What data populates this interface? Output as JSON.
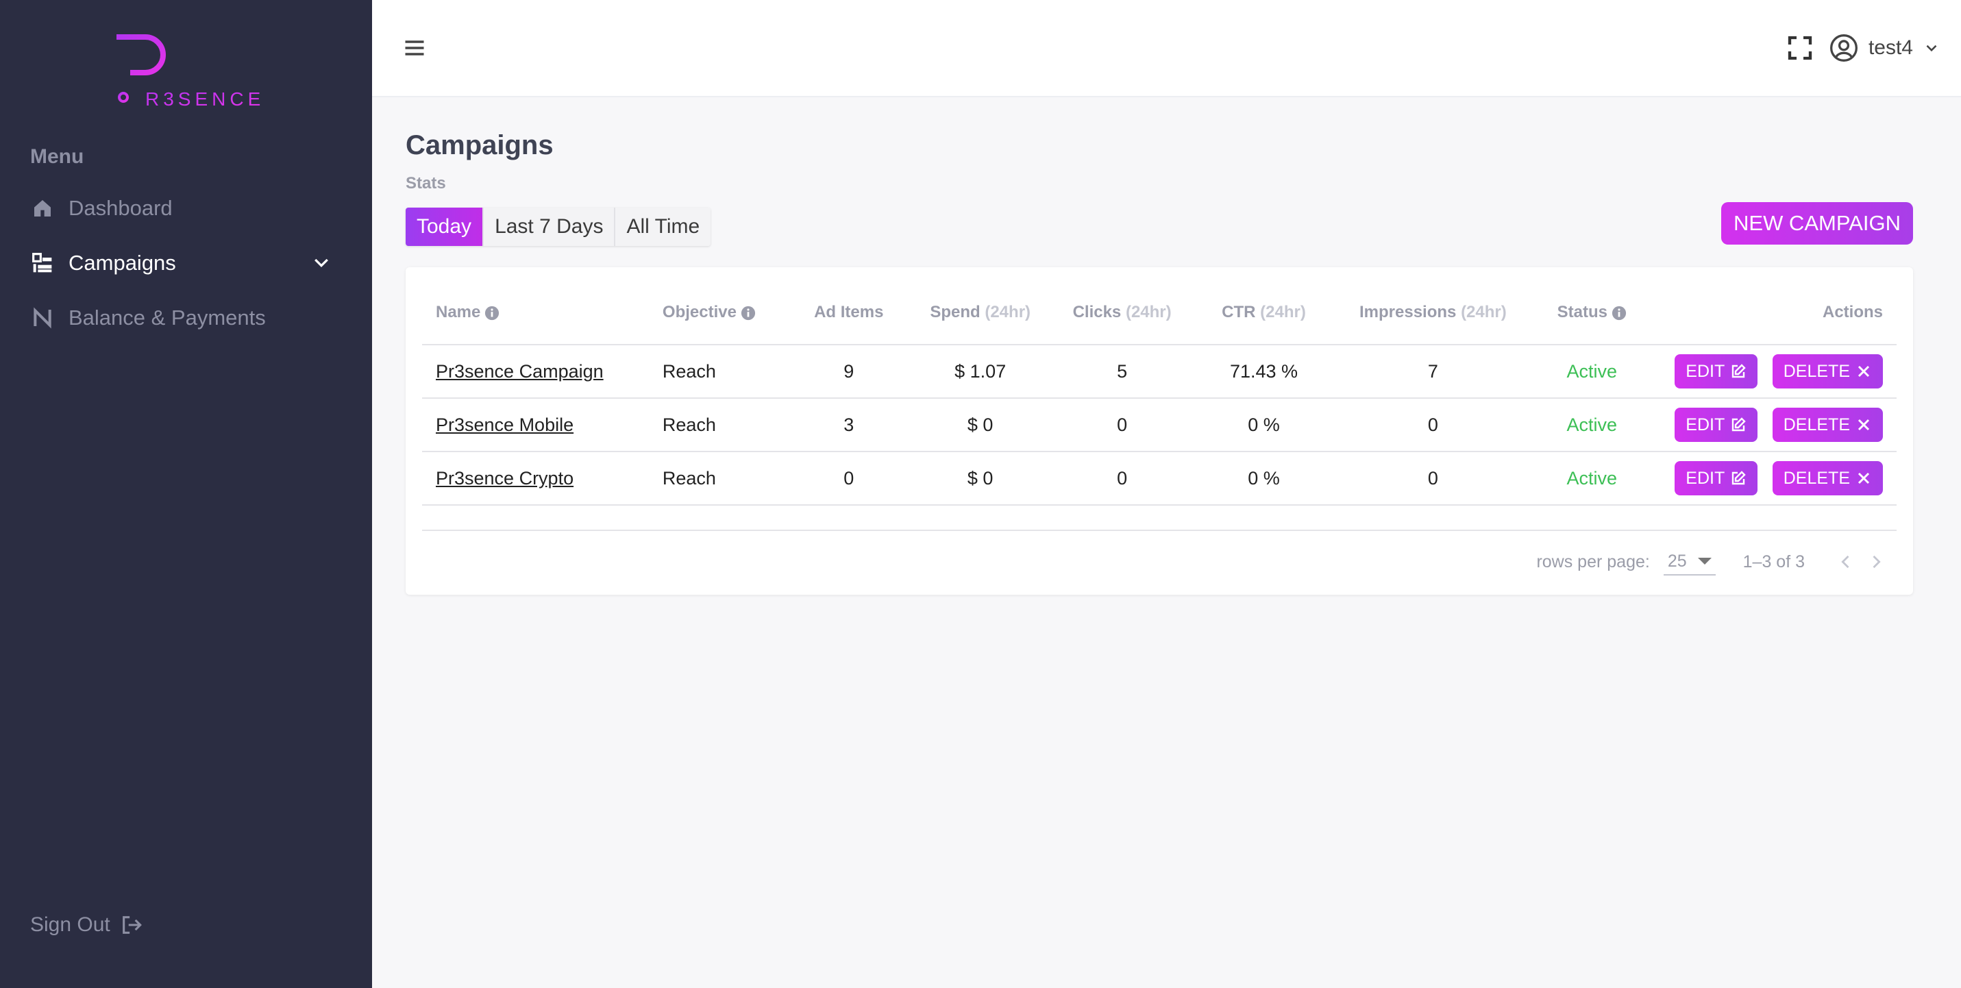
{
  "brand": {
    "logo_text": "R3SENCE",
    "logo_letter": "P"
  },
  "sidebar": {
    "menu_title": "Menu",
    "items": [
      {
        "label": "Dashboard",
        "icon": "home-icon"
      },
      {
        "label": "Campaigns",
        "icon": "campaigns-icon"
      },
      {
        "label": "Balance & Payments",
        "icon": "balance-icon"
      }
    ],
    "signout_label": "Sign Out"
  },
  "header": {
    "username": "test4"
  },
  "main": {
    "title": "Campaigns",
    "stats_label": "Stats",
    "tabs": [
      "Today",
      "Last 7 Days",
      "All Time"
    ],
    "new_campaign_label": "NEW CAMPAIGN"
  },
  "table": {
    "columns": {
      "name": "Name",
      "objective": "Objective",
      "ad_items": "Ad Items",
      "spend": "Spend",
      "clicks": "Clicks",
      "ctr": "CTR",
      "impressions": "Impressions",
      "status": "Status",
      "actions": "Actions",
      "period": "(24hr)"
    },
    "rows": [
      {
        "name": "Pr3sence Campaign",
        "objective": "Reach",
        "ad_items": "9",
        "spend": "$ 1.07",
        "clicks": "5",
        "ctr": "71.43 %",
        "impressions": "7",
        "status": "Active"
      },
      {
        "name": "Pr3sence Mobile",
        "objective": "Reach",
        "ad_items": "3",
        "spend": "$ 0",
        "clicks": "0",
        "ctr": "0 %",
        "impressions": "0",
        "status": "Active"
      },
      {
        "name": "Pr3sence Crypto",
        "objective": "Reach",
        "ad_items": "0",
        "spend": "$ 0",
        "clicks": "0",
        "ctr": "0 %",
        "impressions": "0",
        "status": "Active"
      }
    ],
    "edit_label": "EDIT",
    "delete_label": "DELETE"
  },
  "pagination": {
    "rows_per_page_label": "rows per page:",
    "rows_per_page_value": "25",
    "range": "1–3 of 3"
  },
  "colors": {
    "sidebar_bg": "#2b2d42",
    "accent": "#c02ee8",
    "status_active": "#3cbf55"
  }
}
